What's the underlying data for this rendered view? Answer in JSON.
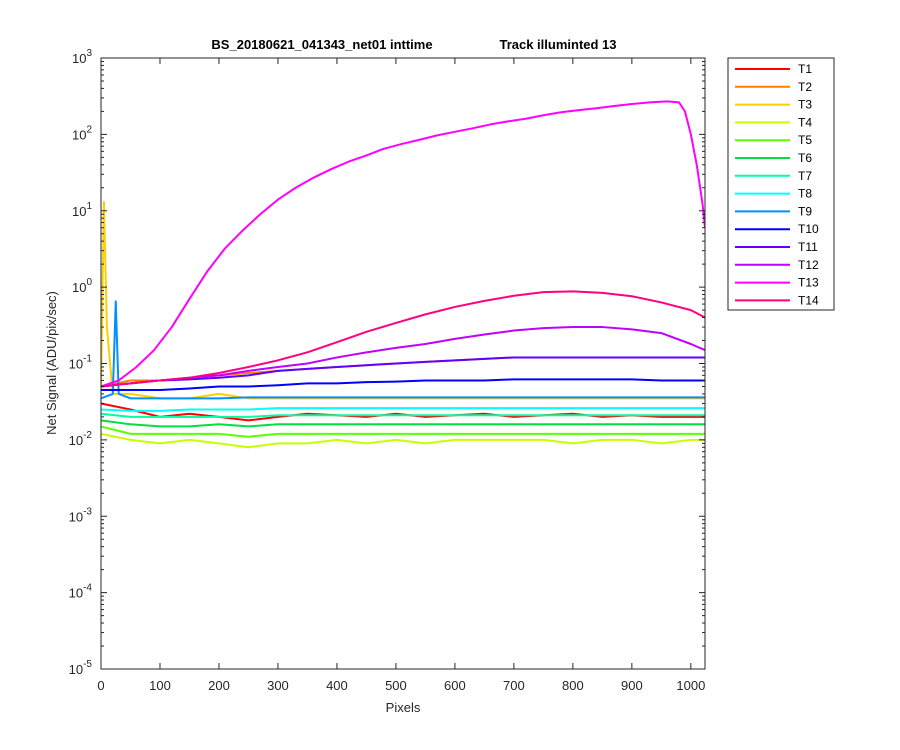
{
  "chart_data": {
    "type": "line",
    "title_left": "BS_20180621_041343_net01   inttime",
    "title_right": "Track illuminted 13",
    "xlabel": "Pixels",
    "ylabel": "Net Signal (ADU/pix/sec)",
    "xlim": [
      0,
      1024
    ],
    "ylim": [
      1e-05,
      1000
    ],
    "yscale": "log",
    "xticks": [
      0,
      100,
      200,
      300,
      400,
      500,
      600,
      700,
      800,
      900,
      1000
    ],
    "yticks": [
      {
        "value": 1e-05,
        "base": "10",
        "exp": "-5"
      },
      {
        "value": 0.0001,
        "base": "10",
        "exp": "-4"
      },
      {
        "value": 0.001,
        "base": "10",
        "exp": "-3"
      },
      {
        "value": 0.01,
        "base": "10",
        "exp": "-2"
      },
      {
        "value": 0.1,
        "base": "10",
        "exp": "-1"
      },
      {
        "value": 1,
        "base": "10",
        "exp": "0"
      },
      {
        "value": 10,
        "base": "10",
        "exp": "1"
      },
      {
        "value": 100,
        "base": "10",
        "exp": "2"
      },
      {
        "value": 1000,
        "base": "10",
        "exp": "3"
      }
    ],
    "legend_position": "outside-top-right",
    "grid": false,
    "series": [
      {
        "name": "T1",
        "color": "#ff0000",
        "x": [
          0,
          50,
          100,
          150,
          200,
          250,
          300,
          350,
          400,
          450,
          500,
          550,
          600,
          650,
          700,
          750,
          800,
          850,
          900,
          950,
          1000,
          1024
        ],
        "y": [
          0.03,
          0.025,
          0.02,
          0.022,
          0.02,
          0.018,
          0.02,
          0.022,
          0.021,
          0.02,
          0.022,
          0.02,
          0.021,
          0.022,
          0.02,
          0.021,
          0.022,
          0.02,
          0.021,
          0.02,
          0.02,
          0.02
        ]
      },
      {
        "name": "T2",
        "color": "#ff7f00",
        "x": [
          0,
          50,
          100,
          150,
          200,
          250,
          300,
          350,
          400,
          450,
          500,
          550,
          600,
          650,
          700,
          750,
          800,
          850,
          900,
          950,
          1000,
          1024
        ],
        "y": [
          0.05,
          0.06,
          0.06,
          0.065,
          0.07,
          0.075,
          0.08,
          0.085,
          0.09,
          0.095,
          0.1,
          0.105,
          0.11,
          0.115,
          0.12,
          0.12,
          0.12,
          0.12,
          0.12,
          0.12,
          0.12,
          0.12
        ]
      },
      {
        "name": "T3",
        "color": "#ffd000",
        "x": [
          0,
          5,
          10,
          20,
          50,
          100,
          150,
          200,
          250,
          300,
          350,
          400,
          450,
          500,
          550,
          600,
          650,
          700,
          750,
          800,
          850,
          900,
          950,
          1000,
          1024
        ],
        "y": [
          0.05,
          13,
          0.3,
          0.04,
          0.04,
          0.035,
          0.035,
          0.04,
          0.035,
          0.035,
          0.035,
          0.035,
          0.035,
          0.035,
          0.035,
          0.035,
          0.035,
          0.035,
          0.035,
          0.035,
          0.035,
          0.035,
          0.035,
          0.035,
          0.035
        ]
      },
      {
        "name": "T4",
        "color": "#c8ff00",
        "x": [
          0,
          50,
          100,
          150,
          200,
          250,
          300,
          350,
          400,
          450,
          500,
          550,
          600,
          650,
          700,
          750,
          800,
          850,
          900,
          950,
          1000,
          1024
        ],
        "y": [
          0.012,
          0.01,
          0.009,
          0.01,
          0.009,
          0.008,
          0.009,
          0.009,
          0.01,
          0.009,
          0.01,
          0.009,
          0.01,
          0.01,
          0.01,
          0.01,
          0.009,
          0.01,
          0.01,
          0.009,
          0.01,
          0.01
        ]
      },
      {
        "name": "T5",
        "color": "#5aff00",
        "x": [
          0,
          50,
          100,
          150,
          200,
          250,
          300,
          350,
          400,
          450,
          500,
          550,
          600,
          650,
          700,
          750,
          800,
          850,
          900,
          950,
          1000,
          1024
        ],
        "y": [
          0.015,
          0.012,
          0.012,
          0.012,
          0.012,
          0.011,
          0.012,
          0.012,
          0.012,
          0.012,
          0.012,
          0.012,
          0.012,
          0.012,
          0.012,
          0.012,
          0.012,
          0.012,
          0.012,
          0.012,
          0.012,
          0.012
        ]
      },
      {
        "name": "T6",
        "color": "#00e040",
        "x": [
          0,
          50,
          100,
          150,
          200,
          250,
          300,
          350,
          400,
          450,
          500,
          550,
          600,
          650,
          700,
          750,
          800,
          850,
          900,
          950,
          1000,
          1024
        ],
        "y": [
          0.018,
          0.016,
          0.015,
          0.015,
          0.016,
          0.015,
          0.016,
          0.016,
          0.016,
          0.016,
          0.016,
          0.016,
          0.016,
          0.016,
          0.016,
          0.016,
          0.016,
          0.016,
          0.016,
          0.016,
          0.016,
          0.016
        ]
      },
      {
        "name": "T7",
        "color": "#00ffa0",
        "x": [
          0,
          50,
          100,
          150,
          200,
          250,
          300,
          350,
          400,
          450,
          500,
          550,
          600,
          650,
          700,
          750,
          800,
          850,
          900,
          950,
          1000,
          1024
        ],
        "y": [
          0.022,
          0.02,
          0.02,
          0.02,
          0.02,
          0.02,
          0.021,
          0.021,
          0.021,
          0.021,
          0.021,
          0.021,
          0.021,
          0.021,
          0.021,
          0.021,
          0.021,
          0.021,
          0.021,
          0.021,
          0.021,
          0.021
        ]
      },
      {
        "name": "T8",
        "color": "#00ffff",
        "x": [
          0,
          50,
          100,
          150,
          200,
          250,
          300,
          350,
          400,
          450,
          500,
          550,
          600,
          650,
          700,
          750,
          800,
          850,
          900,
          950,
          1000,
          1024
        ],
        "y": [
          0.025,
          0.024,
          0.024,
          0.025,
          0.025,
          0.025,
          0.026,
          0.026,
          0.026,
          0.026,
          0.026,
          0.026,
          0.026,
          0.026,
          0.026,
          0.026,
          0.026,
          0.026,
          0.026,
          0.026,
          0.026,
          0.026
        ]
      },
      {
        "name": "T9",
        "color": "#0090ff",
        "x": [
          0,
          20,
          25,
          30,
          50,
          100,
          150,
          200,
          250,
          300,
          350,
          400,
          450,
          500,
          550,
          600,
          650,
          700,
          750,
          800,
          850,
          900,
          950,
          1000,
          1024
        ],
        "y": [
          0.035,
          0.04,
          0.65,
          0.04,
          0.035,
          0.035,
          0.035,
          0.035,
          0.036,
          0.036,
          0.036,
          0.036,
          0.036,
          0.036,
          0.036,
          0.036,
          0.036,
          0.036,
          0.036,
          0.036,
          0.036,
          0.036,
          0.036,
          0.036,
          0.036
        ]
      },
      {
        "name": "T10",
        "color": "#0000ff",
        "x": [
          0,
          50,
          100,
          150,
          200,
          250,
          300,
          350,
          400,
          450,
          500,
          550,
          600,
          650,
          700,
          750,
          800,
          850,
          900,
          950,
          1000,
          1024
        ],
        "y": [
          0.045,
          0.045,
          0.045,
          0.047,
          0.05,
          0.05,
          0.052,
          0.055,
          0.055,
          0.057,
          0.058,
          0.06,
          0.06,
          0.06,
          0.062,
          0.062,
          0.062,
          0.062,
          0.062,
          0.06,
          0.06,
          0.06
        ]
      },
      {
        "name": "T11",
        "color": "#6000ff",
        "x": [
          0,
          50,
          100,
          150,
          200,
          250,
          300,
          350,
          400,
          450,
          500,
          550,
          600,
          650,
          700,
          750,
          800,
          850,
          900,
          950,
          1000,
          1024
        ],
        "y": [
          0.05,
          0.055,
          0.06,
          0.062,
          0.065,
          0.07,
          0.08,
          0.085,
          0.09,
          0.095,
          0.1,
          0.105,
          0.11,
          0.115,
          0.12,
          0.12,
          0.12,
          0.12,
          0.12,
          0.12,
          0.12,
          0.12
        ]
      },
      {
        "name": "T12",
        "color": "#c000ff",
        "x": [
          0,
          50,
          100,
          150,
          200,
          250,
          300,
          350,
          400,
          450,
          500,
          550,
          600,
          650,
          700,
          750,
          800,
          850,
          900,
          950,
          1000,
          1024
        ],
        "y": [
          0.05,
          0.055,
          0.06,
          0.065,
          0.07,
          0.08,
          0.09,
          0.1,
          0.12,
          0.14,
          0.16,
          0.18,
          0.21,
          0.24,
          0.27,
          0.29,
          0.3,
          0.3,
          0.28,
          0.25,
          0.18,
          0.15
        ]
      },
      {
        "name": "T13",
        "color": "#ff00ff",
        "x": [
          0,
          30,
          60,
          90,
          120,
          150,
          180,
          210,
          240,
          270,
          300,
          330,
          360,
          390,
          420,
          450,
          480,
          510,
          540,
          570,
          600,
          630,
          660,
          690,
          720,
          750,
          780,
          810,
          840,
          870,
          900,
          930,
          960,
          980,
          990,
          1000,
          1010,
          1020,
          1024
        ],
        "y": [
          0.05,
          0.06,
          0.09,
          0.15,
          0.3,
          0.7,
          1.6,
          3.2,
          5.5,
          9,
          14,
          20,
          27,
          35,
          44,
          53,
          65,
          75,
          85,
          97,
          108,
          120,
          135,
          148,
          160,
          178,
          195,
          208,
          220,
          235,
          250,
          262,
          270,
          262,
          200,
          100,
          40,
          12,
          6
        ]
      },
      {
        "name": "T14",
        "color": "#ff0080",
        "x": [
          0,
          50,
          100,
          150,
          200,
          250,
          300,
          350,
          400,
          450,
          500,
          550,
          600,
          650,
          700,
          750,
          800,
          850,
          900,
          950,
          1000,
          1024
        ],
        "y": [
          0.05,
          0.055,
          0.06,
          0.065,
          0.075,
          0.09,
          0.11,
          0.14,
          0.19,
          0.26,
          0.34,
          0.44,
          0.55,
          0.66,
          0.77,
          0.86,
          0.88,
          0.84,
          0.76,
          0.63,
          0.5,
          0.4
        ]
      }
    ]
  }
}
